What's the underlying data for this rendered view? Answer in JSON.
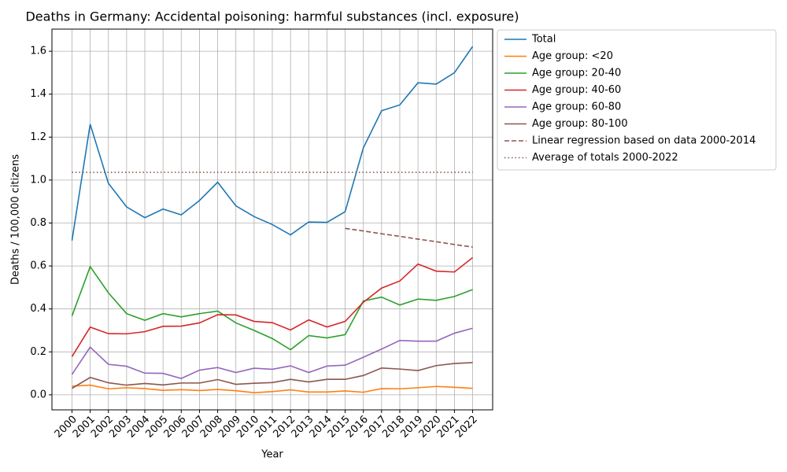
{
  "chart_data": {
    "type": "line",
    "title": "Deaths in Germany: Accidental poisoning: harmful substances (incl. exposure)",
    "xlabel": "Year",
    "ylabel": "Deaths / 100,000 citizens",
    "x": [
      2000,
      2001,
      2002,
      2003,
      2004,
      2005,
      2006,
      2007,
      2008,
      2009,
      2010,
      2011,
      2012,
      2013,
      2014,
      2015,
      2016,
      2017,
      2018,
      2019,
      2020,
      2021,
      2022
    ],
    "xlim": [
      1998.9,
      2023.1
    ],
    "xticks": [
      2000,
      2001,
      2002,
      2003,
      2004,
      2005,
      2006,
      2007,
      2008,
      2009,
      2010,
      2011,
      2012,
      2013,
      2014,
      2015,
      2016,
      2017,
      2018,
      2019,
      2020,
      2021,
      2022
    ],
    "ylim": [
      -0.07,
      1.703
    ],
    "yticks": [
      {
        "value": 0,
        "label": "0.0"
      },
      0.2,
      0.4,
      0.6,
      0.8,
      {
        "value": 1,
        "label": "1.0"
      },
      1.2,
      1.4,
      1.6
    ],
    "grid": true,
    "legend": "outside right",
    "series": [
      {
        "name": "Total",
        "color": "#1f77b4",
        "linestyle": "solid",
        "values": [
          0.718,
          1.26,
          0.985,
          0.875,
          0.825,
          0.865,
          0.838,
          0.905,
          0.99,
          0.88,
          0.83,
          0.793,
          0.745,
          0.805,
          0.803,
          0.853,
          1.15,
          1.323,
          1.35,
          1.453,
          1.447,
          1.5,
          1.622
        ]
      },
      {
        "name": "Age group: <20",
        "color": "#ff7f0e",
        "linestyle": "solid",
        "values": [
          0.04,
          0.045,
          0.028,
          0.033,
          0.029,
          0.021,
          0.024,
          0.02,
          0.025,
          0.019,
          0.01,
          0.015,
          0.023,
          0.013,
          0.013,
          0.018,
          0.012,
          0.029,
          0.028,
          0.033,
          0.039,
          0.035,
          0.03
        ]
      },
      {
        "name": "Age group: 20-40",
        "color": "#2ca02c",
        "linestyle": "solid",
        "values": [
          0.367,
          0.597,
          0.475,
          0.378,
          0.347,
          0.378,
          0.363,
          0.378,
          0.39,
          0.335,
          0.3,
          0.262,
          0.21,
          0.276,
          0.265,
          0.28,
          0.437,
          0.455,
          0.418,
          0.446,
          0.44,
          0.458,
          0.49
        ]
      },
      {
        "name": "Age group: 40-60",
        "color": "#d62728",
        "linestyle": "solid",
        "values": [
          0.178,
          0.315,
          0.285,
          0.284,
          0.294,
          0.319,
          0.32,
          0.335,
          0.373,
          0.372,
          0.342,
          0.336,
          0.302,
          0.349,
          0.316,
          0.342,
          0.431,
          0.497,
          0.53,
          0.609,
          0.576,
          0.572,
          0.639
        ]
      },
      {
        "name": "Age group: 60-80",
        "color": "#9467bd",
        "linestyle": "solid",
        "values": [
          0.095,
          0.222,
          0.142,
          0.133,
          0.101,
          0.1,
          0.076,
          0.115,
          0.127,
          0.104,
          0.124,
          0.119,
          0.135,
          0.104,
          0.134,
          0.138,
          0.175,
          0.213,
          0.253,
          0.25,
          0.25,
          0.287,
          0.31
        ]
      },
      {
        "name": "Age group: 80-100",
        "color": "#8c564b",
        "linestyle": "solid",
        "values": [
          0.03,
          0.081,
          0.056,
          0.045,
          0.053,
          0.046,
          0.055,
          0.055,
          0.071,
          0.049,
          0.054,
          0.057,
          0.072,
          0.06,
          0.072,
          0.072,
          0.09,
          0.125,
          0.12,
          0.113,
          0.136,
          0.146,
          0.15
        ]
      },
      {
        "name": "Linear regression based on data 2000-2014",
        "color": "#8c564b",
        "linestyle": "dashed",
        "values": [
          null,
          null,
          null,
          null,
          null,
          null,
          null,
          null,
          null,
          null,
          null,
          null,
          null,
          null,
          null,
          0.775,
          0.763,
          0.75,
          0.738,
          0.725,
          0.713,
          0.7,
          0.688
        ]
      },
      {
        "name": "Average of totals 2000-2022",
        "color": "#8c564b",
        "linestyle": "dotted",
        "values": [
          1.036,
          1.036,
          1.036,
          1.036,
          1.036,
          1.036,
          1.036,
          1.036,
          1.036,
          1.036,
          1.036,
          1.036,
          1.036,
          1.036,
          1.036,
          1.036,
          1.036,
          1.036,
          1.036,
          1.036,
          1.036,
          1.036,
          1.036
        ]
      }
    ]
  }
}
